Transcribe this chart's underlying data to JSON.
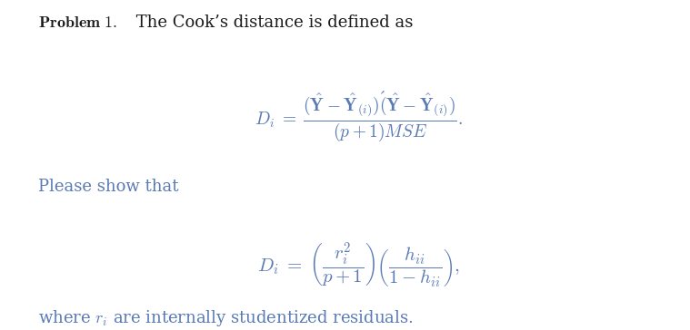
{
  "background_color": "#ffffff",
  "fig_width": 7.59,
  "fig_height": 3.64,
  "dpi": 100,
  "text_color": "#5a7ab5",
  "bold_color": "#1a1a1a",
  "fontsize_text": 13,
  "fontsize_eq": 14,
  "line1_bold": "Problem 1.",
  "line1_rest": " The Cook’s distance is defined as",
  "eq1": "$D_i \\;=\\; \\dfrac{(\\hat{\\mathbf{Y}} - \\hat{\\mathbf{Y}}_{(i)})'(\\hat{\\mathbf{Y}} - \\hat{\\mathbf{Y}}_{(i)})}{(p+1)MSE}.$",
  "line2": "Please show that",
  "eq2": "$D_i \\;=\\; \\left(\\dfrac{r_i^2}{p+1}\\right)\\left(\\dfrac{h_{ii}}{1-h_{ii}}\\right),$",
  "line3_pre": "where ",
  "line3_math": "$r_i$",
  "line3_post": " are internally studentized residuals."
}
